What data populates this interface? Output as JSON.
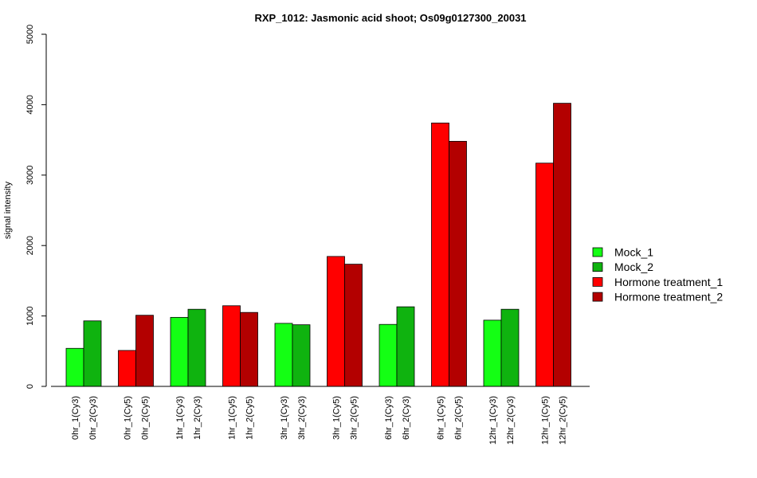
{
  "chart_data": {
    "type": "bar",
    "title": "RXP_1012: Jasmonic acid shoot; Os09g0127300_20031",
    "xlabel": "",
    "ylabel": "signal intensity",
    "ylim": [
      0,
      5000
    ],
    "yticks": [
      0,
      1000,
      2000,
      3000,
      4000,
      5000
    ],
    "grid": false,
    "legend_position": "right",
    "colors": {
      "Mock_1": "#14ff14",
      "Mock_2": "#0fb30f",
      "Hormone treatment_1": "#ff0000",
      "Hormone treatment_2": "#b30000"
    },
    "bars": [
      {
        "label": "0hr_1(Cy3)",
        "series": "Mock_1",
        "value": 540
      },
      {
        "label": "0hr_2(Cy3)",
        "series": "Mock_2",
        "value": 930
      },
      {
        "label": "0hr_1(Cy5)",
        "series": "Hormone treatment_1",
        "value": 510
      },
      {
        "label": "0hr_2(Cy5)",
        "series": "Hormone treatment_2",
        "value": 1010
      },
      {
        "label": "1hr_1(Cy3)",
        "series": "Mock_1",
        "value": 980
      },
      {
        "label": "1hr_2(Cy3)",
        "series": "Mock_2",
        "value": 1095
      },
      {
        "label": "1hr_1(Cy5)",
        "series": "Hormone treatment_1",
        "value": 1145
      },
      {
        "label": "1hr_2(Cy5)",
        "series": "Hormone treatment_2",
        "value": 1050
      },
      {
        "label": "3hr_1(Cy3)",
        "series": "Mock_1",
        "value": 895
      },
      {
        "label": "3hr_2(Cy3)",
        "series": "Mock_2",
        "value": 875
      },
      {
        "label": "3hr_1(Cy5)",
        "series": "Hormone treatment_1",
        "value": 1845
      },
      {
        "label": "3hr_2(Cy5)",
        "series": "Hormone treatment_2",
        "value": 1735
      },
      {
        "label": "6hr_1(Cy3)",
        "series": "Mock_1",
        "value": 880
      },
      {
        "label": "6hr_2(Cy3)",
        "series": "Mock_2",
        "value": 1130
      },
      {
        "label": "6hr_1(Cy5)",
        "series": "Hormone treatment_1",
        "value": 3740
      },
      {
        "label": "6hr_2(Cy5)",
        "series": "Hormone treatment_2",
        "value": 3480
      },
      {
        "label": "12hr_1(Cy3)",
        "series": "Mock_1",
        "value": 940
      },
      {
        "label": "12hr_2(Cy3)",
        "series": "Mock_2",
        "value": 1095
      },
      {
        "label": "12hr_1(Cy5)",
        "series": "Hormone treatment_1",
        "value": 3170
      },
      {
        "label": "12hr_2(Cy5)",
        "series": "Hormone treatment_2",
        "value": 4020
      }
    ],
    "legend": [
      {
        "name": "Mock_1",
        "color": "#14ff14"
      },
      {
        "name": "Mock_2",
        "color": "#0fb30f"
      },
      {
        "name": "Hormone treatment_1",
        "color": "#ff0000"
      },
      {
        "name": "Hormone treatment_2",
        "color": "#b30000"
      }
    ]
  }
}
